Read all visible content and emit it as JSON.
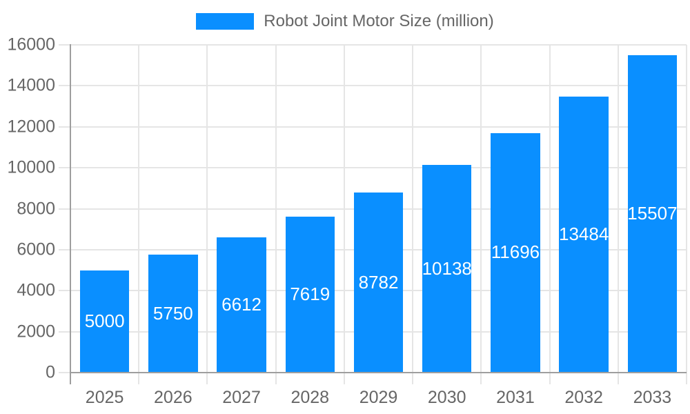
{
  "chart_data": {
    "type": "bar",
    "title": "Robot Joint Motor Size (million)",
    "categories": [
      "2025",
      "2026",
      "2027",
      "2028",
      "2029",
      "2030",
      "2031",
      "2032",
      "2033"
    ],
    "values": [
      5000,
      5750,
      6612,
      7619,
      8782,
      10138,
      11696,
      13484,
      15507
    ],
    "value_labels": [
      "5000",
      "5750",
      "6612",
      "7619",
      "8782",
      "10138",
      "11696",
      "13484",
      "15507"
    ],
    "ytick_labels": [
      "0",
      "2000",
      "4000",
      "6000",
      "8000",
      "10000",
      "12000",
      "14000",
      "16000"
    ],
    "yticks": [
      0,
      2000,
      4000,
      6000,
      8000,
      10000,
      12000,
      14000,
      16000
    ],
    "ylim": [
      0,
      16000
    ],
    "xlabel": "",
    "ylabel": "",
    "grid": true,
    "legend_position": "top",
    "legend_label": "Robot Joint Motor Size (million)"
  },
  "colors": {
    "bar": "#0A8FFF",
    "grid": "#E5E5E5",
    "axis": "#9E9E9E",
    "tick_text": "#666666",
    "legend_text": "#666666",
    "value_label_text": "#FFFFFF",
    "background": "#FFFFFF"
  }
}
